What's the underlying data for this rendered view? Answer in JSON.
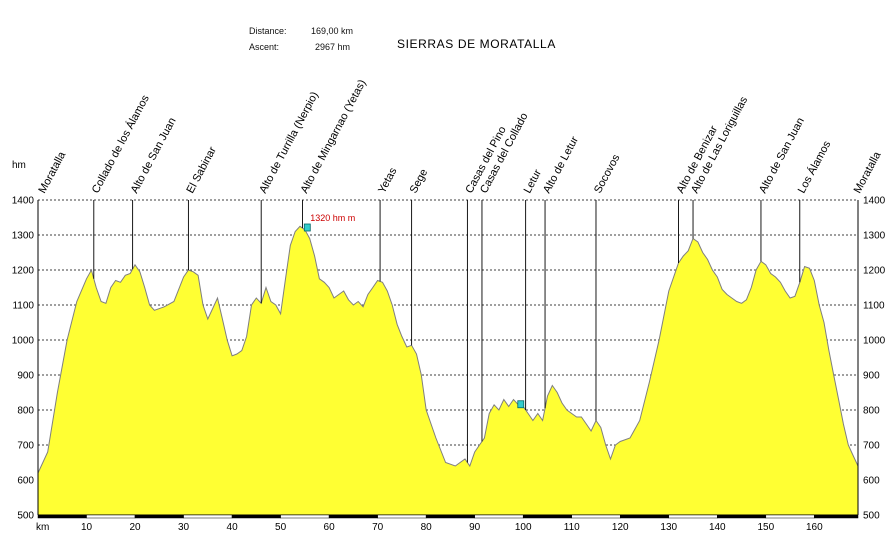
{
  "header": {
    "distance_label": "Distance:",
    "distance_value": "169,00 km",
    "ascent_label": "Ascent:",
    "ascent_value": "2967 hm"
  },
  "chart_data": {
    "type": "area",
    "title": "SIERRAS DE MORATALLA",
    "ylabel": "hm",
    "xlabel": "km",
    "ylim": [
      500,
      1400
    ],
    "xlim": [
      0,
      169
    ],
    "y_ticks": [
      500,
      600,
      700,
      800,
      900,
      1000,
      1100,
      1200,
      1300,
      1400
    ],
    "x_ticks": [
      10,
      20,
      30,
      40,
      50,
      60,
      70,
      80,
      90,
      100,
      110,
      120,
      130,
      140,
      150,
      160
    ],
    "grid": true,
    "fill_color": "#ffff33",
    "line_color": "#7f7f7f",
    "x": [
      0,
      2,
      4,
      6,
      8,
      10,
      11,
      12,
      13,
      14,
      15,
      16,
      17,
      18,
      19,
      20,
      21,
      22,
      23,
      24,
      26,
      28,
      30,
      31,
      32,
      33,
      34,
      35,
      36,
      37,
      38,
      39,
      40,
      41,
      42,
      43,
      44,
      45,
      46,
      47,
      48,
      49,
      50,
      51,
      52,
      53,
      54,
      55,
      56,
      57,
      58,
      59,
      60,
      61,
      62,
      63,
      64,
      65,
      66,
      67,
      68,
      69,
      70,
      71,
      72,
      73,
      74,
      75,
      76,
      77,
      78,
      79,
      80,
      82,
      84,
      86,
      88,
      89,
      90,
      91,
      92,
      93,
      94,
      95,
      96,
      97,
      98,
      99,
      100,
      101,
      102,
      103,
      104,
      105,
      106,
      107,
      108,
      109,
      110,
      111,
      112,
      113,
      114,
      115,
      116,
      117,
      118,
      119,
      120,
      122,
      124,
      126,
      128,
      130,
      132,
      133,
      134,
      135,
      136,
      137,
      138,
      139,
      140,
      141,
      142,
      143,
      144,
      145,
      146,
      147,
      148,
      149,
      150,
      151,
      152,
      153,
      154,
      155,
      156,
      157,
      158,
      159,
      160,
      161,
      162,
      163,
      164,
      165,
      166,
      167,
      168,
      169
    ],
    "y": [
      620,
      680,
      850,
      1000,
      1110,
      1175,
      1200,
      1150,
      1110,
      1105,
      1150,
      1170,
      1165,
      1185,
      1190,
      1215,
      1195,
      1150,
      1100,
      1085,
      1095,
      1110,
      1180,
      1200,
      1195,
      1185,
      1100,
      1060,
      1090,
      1120,
      1060,
      1000,
      955,
      960,
      970,
      1010,
      1100,
      1120,
      1105,
      1150,
      1110,
      1100,
      1075,
      1175,
      1270,
      1310,
      1325,
      1315,
      1290,
      1240,
      1175,
      1165,
      1150,
      1120,
      1130,
      1140,
      1115,
      1100,
      1110,
      1095,
      1130,
      1150,
      1170,
      1165,
      1140,
      1100,
      1045,
      1010,
      980,
      985,
      960,
      900,
      800,
      720,
      650,
      640,
      660,
      640,
      680,
      700,
      720,
      790,
      815,
      800,
      830,
      810,
      830,
      815,
      810,
      790,
      770,
      790,
      770,
      840,
      870,
      850,
      820,
      800,
      790,
      780,
      780,
      760,
      740,
      770,
      750,
      700,
      660,
      700,
      710,
      720,
      770,
      880,
      1000,
      1140,
      1220,
      1240,
      1255,
      1290,
      1280,
      1250,
      1230,
      1200,
      1180,
      1145,
      1130,
      1120,
      1110,
      1105,
      1115,
      1150,
      1200,
      1225,
      1215,
      1190,
      1180,
      1165,
      1140,
      1120,
      1125,
      1165,
      1210,
      1205,
      1170,
      1100,
      1050,
      970,
      900,
      830,
      760,
      700,
      670,
      640
    ],
    "waypoints": [
      {
        "name": "Moratalla",
        "km": 0.5,
        "type": "endpoint"
      },
      {
        "name": "Collado de los Álamos",
        "km": 11.5
      },
      {
        "name": "Alto de San Juan",
        "km": 19.5
      },
      {
        "name": "El Sabinar",
        "km": 31
      },
      {
        "name": "Alto de Turrilla (Nerpio)",
        "km": 46
      },
      {
        "name": "Alto de Mingarnao (Yetas)",
        "km": 54.5
      },
      {
        "name": "Yetas",
        "km": 70.5
      },
      {
        "name": "Sege",
        "km": 77
      },
      {
        "name": "Casas del Pino",
        "km": 88.5
      },
      {
        "name": "Casas del Collado",
        "km": 91.5
      },
      {
        "name": "Letur",
        "km": 100.5
      },
      {
        "name": "Alto de Letur",
        "km": 104.5
      },
      {
        "name": "Socovos",
        "km": 115
      },
      {
        "name": "Alto de Benizar",
        "km": 132
      },
      {
        "name": "Alto de Las Loriguillas",
        "km": 135
      },
      {
        "name": "Alto de San Juan",
        "km": 149
      },
      {
        "name": "Los Álamos",
        "km": 157
      },
      {
        "name": "Moratalla",
        "km": 168.5,
        "type": "endpoint"
      }
    ],
    "annotations": [
      {
        "label": "1320 hm m",
        "km": 55.5,
        "y": 1320
      }
    ],
    "markers": [
      {
        "km": 55.5,
        "y": 1320
      },
      {
        "km": 99.5,
        "y": 815
      }
    ]
  }
}
